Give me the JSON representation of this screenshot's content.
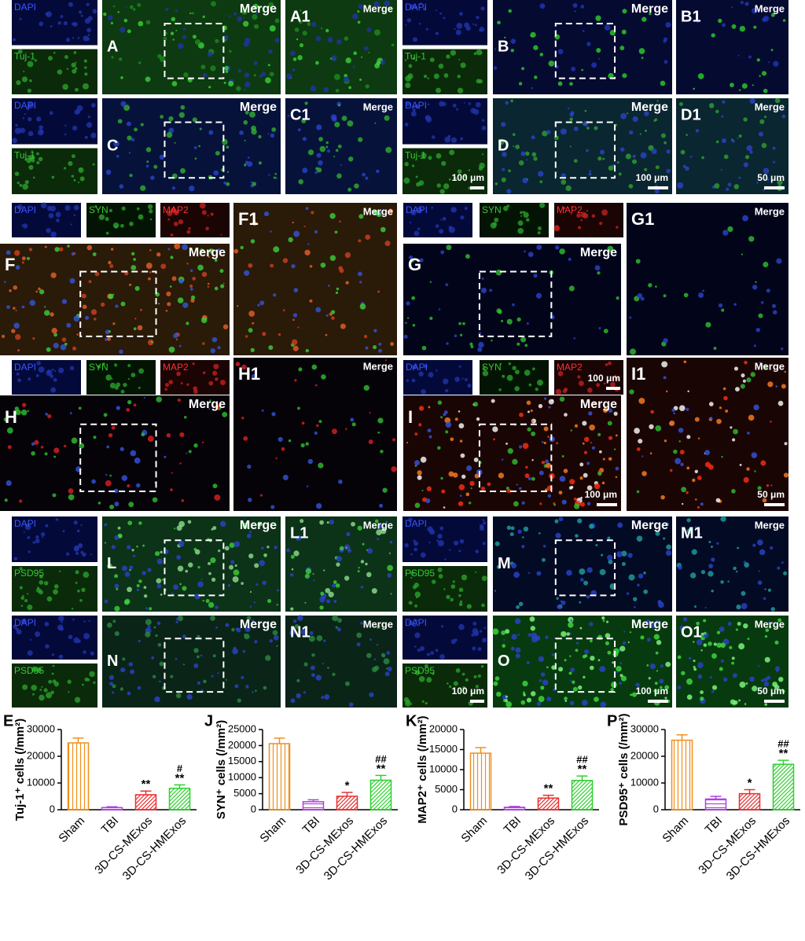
{
  "micrographs": {
    "groups": [
      {
        "main": "A",
        "zoom": "A1",
        "merge": "Merge",
        "zoom_merge": "Merge",
        "channels": [
          {
            "name": "DAPI",
            "color": "#3a55ff"
          },
          {
            "name": "Tuj-1",
            "color": "#36c836"
          }
        ]
      },
      {
        "main": "B",
        "zoom": "B1",
        "merge": "Merge",
        "zoom_merge": "Merge",
        "channels": [
          {
            "name": "DAPI",
            "color": "#3a55ff"
          },
          {
            "name": "Tuj-1",
            "color": "#36c836"
          }
        ]
      },
      {
        "main": "C",
        "zoom": "C1",
        "merge": "Merge",
        "zoom_merge": "Merge",
        "channels": [
          {
            "name": "DAPI",
            "color": "#3a55ff"
          },
          {
            "name": "Tuj-1",
            "color": "#36c836"
          }
        ]
      },
      {
        "main": "D",
        "zoom": "D1",
        "merge": "Merge",
        "zoom_merge": "Merge",
        "channels": [
          {
            "name": "DAPI",
            "color": "#3a55ff"
          },
          {
            "name": "Tuj-1",
            "color": "#36c836"
          }
        ],
        "scale_bar": {
          "channel": "100 μm",
          "main": "100 μm",
          "zoom": "50 μm"
        }
      },
      {
        "main": "F",
        "zoom": "F1",
        "merge": "Merge",
        "zoom_merge": "Merge",
        "channels": [
          {
            "name": "DAPI",
            "color": "#3a55ff"
          },
          {
            "name": "SYN",
            "color": "#36c836"
          },
          {
            "name": "MAP2",
            "color": "#ff3030"
          }
        ]
      },
      {
        "main": "G",
        "zoom": "G1",
        "merge": "Merge",
        "zoom_merge": "Merge",
        "channels": [
          {
            "name": "DAPI",
            "color": "#3a55ff"
          },
          {
            "name": "SYN",
            "color": "#36c836"
          },
          {
            "name": "MAP2",
            "color": "#ff3030"
          }
        ]
      },
      {
        "main": "H",
        "zoom": "H1",
        "merge": "Merge",
        "zoom_merge": "Merge",
        "channels": [
          {
            "name": "DAPI",
            "color": "#3a55ff"
          },
          {
            "name": "SYN",
            "color": "#36c836"
          },
          {
            "name": "MAP2",
            "color": "#ff3030"
          }
        ]
      },
      {
        "main": "I",
        "zoom": "I1",
        "merge": "Merge",
        "zoom_merge": "Merge",
        "channels": [
          {
            "name": "DAPI",
            "color": "#3a55ff"
          },
          {
            "name": "SYN",
            "color": "#36c836"
          },
          {
            "name": "MAP2",
            "color": "#ff3030"
          }
        ],
        "scale_bar": {
          "channel": "100 μm",
          "main": "100 μm",
          "zoom": "50 μm"
        }
      },
      {
        "main": "L",
        "zoom": "L1",
        "merge": "Merge",
        "zoom_merge": "Merge",
        "channels": [
          {
            "name": "DAPI",
            "color": "#3a55ff"
          },
          {
            "name": "PSD95",
            "color": "#36c836"
          }
        ]
      },
      {
        "main": "M",
        "zoom": "M1",
        "merge": "Merge",
        "zoom_merge": "Merge",
        "channels": [
          {
            "name": "DAPI",
            "color": "#3a55ff"
          },
          {
            "name": "PSD95",
            "color": "#36c836"
          }
        ]
      },
      {
        "main": "N",
        "zoom": "N1",
        "merge": "Merge",
        "zoom_merge": "Merge",
        "channels": [
          {
            "name": "DAPI",
            "color": "#3a55ff"
          },
          {
            "name": "PSD95",
            "color": "#36c836"
          }
        ]
      },
      {
        "main": "O",
        "zoom": "O1",
        "merge": "Merge",
        "zoom_merge": "Merge",
        "channels": [
          {
            "name": "DAPI",
            "color": "#3a55ff"
          },
          {
            "name": "PSD95",
            "color": "#36c836"
          }
        ],
        "scale_bar": {
          "channel": "100 μm",
          "main": "100 μm",
          "zoom": "50 μm"
        }
      }
    ]
  },
  "chart_data": [
    {
      "type": "bar",
      "panel": "E",
      "y_label": "Tuj-1⁺ cells (/mm²)",
      "categories": [
        "Sham",
        "TBI",
        "3D-CS-MExos",
        "3D-CS-HMExos"
      ],
      "values": [
        25000,
        800,
        5600,
        8000
      ],
      "errors": [
        1800,
        300,
        1400,
        1300
      ],
      "stars": [
        null,
        null,
        "**",
        "**"
      ],
      "hashes": [
        null,
        null,
        null,
        "#"
      ],
      "colors": [
        "#f0901e",
        "#b040e0",
        "#e83030",
        "#30d030"
      ],
      "hatches": [
        "vertical",
        "horizontal",
        "diagonal",
        "diagonal"
      ],
      "ylim": [
        0,
        30000
      ],
      "yticks": [
        0,
        10000,
        20000,
        30000
      ]
    },
    {
      "type": "bar",
      "panel": "J",
      "y_label": "SYN⁺ cells (/mm²)",
      "categories": [
        "Sham",
        "TBI",
        "3D-CS-MExos",
        "3D-CS-HMExos"
      ],
      "values": [
        20600,
        2500,
        4200,
        9200
      ],
      "errors": [
        1700,
        600,
        1200,
        1500
      ],
      "stars": [
        null,
        null,
        "*",
        "**"
      ],
      "hashes": [
        null,
        null,
        null,
        "##"
      ],
      "colors": [
        "#f0901e",
        "#b040e0",
        "#e83030",
        "#30d030"
      ],
      "hatches": [
        "vertical",
        "horizontal",
        "diagonal",
        "diagonal"
      ],
      "ylim": [
        0,
        25000
      ],
      "yticks": [
        0,
        5000,
        10000,
        15000,
        20000,
        25000
      ]
    },
    {
      "type": "bar",
      "panel": "K",
      "y_label": "MAP2⁺ cells (/mm²)",
      "categories": [
        "Sham",
        "TBI",
        "3D-CS-MExos",
        "3D-CS-HMExos"
      ],
      "values": [
        14100,
        600,
        2900,
        7300
      ],
      "errors": [
        1400,
        200,
        700,
        1100
      ],
      "stars": [
        null,
        null,
        "**",
        "**"
      ],
      "hashes": [
        null,
        null,
        null,
        "##"
      ],
      "colors": [
        "#f0901e",
        "#b040e0",
        "#e83030",
        "#30d030"
      ],
      "hatches": [
        "vertical",
        "horizontal",
        "diagonal",
        "diagonal"
      ],
      "ylim": [
        0,
        20000
      ],
      "yticks": [
        0,
        5000,
        10000,
        15000,
        20000
      ]
    },
    {
      "type": "bar",
      "panel": "P",
      "y_label": "PSD95⁺ cells (/mm²)",
      "categories": [
        "Sham",
        "TBI",
        "3D-CS-MExos",
        "3D-CS-HMExos"
      ],
      "values": [
        26000,
        4000,
        6000,
        17000
      ],
      "errors": [
        2000,
        1000,
        1500,
        1500
      ],
      "stars": [
        null,
        null,
        "*",
        "**"
      ],
      "hashes": [
        null,
        null,
        null,
        "##"
      ],
      "colors": [
        "#f0901e",
        "#b040e0",
        "#e83030",
        "#30d030"
      ],
      "hatches": [
        "vertical",
        "horizontal",
        "diagonal",
        "diagonal"
      ],
      "ylim": [
        0,
        30000
      ],
      "yticks": [
        0,
        10000,
        20000,
        30000
      ]
    }
  ]
}
